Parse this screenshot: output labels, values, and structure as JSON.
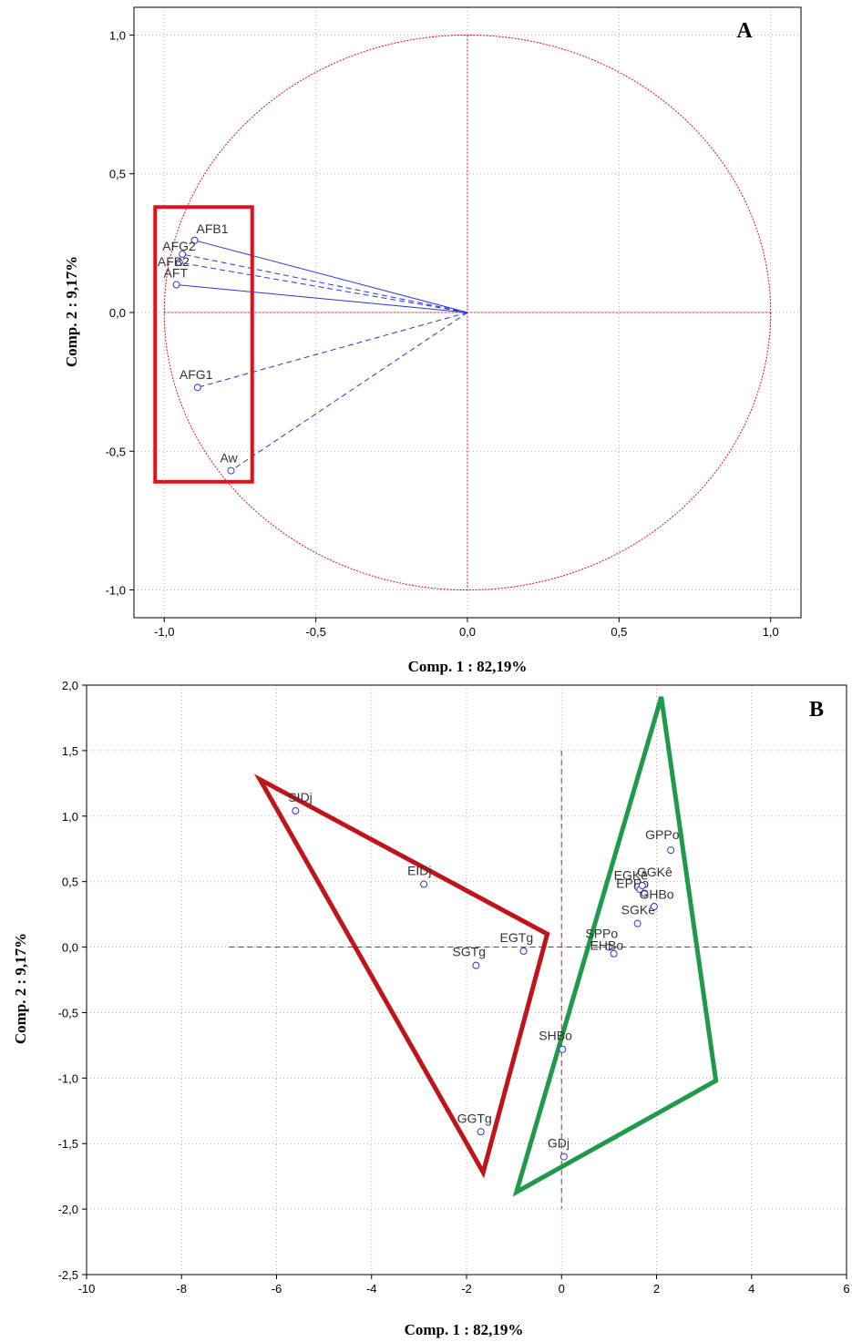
{
  "chart_data": [
    {
      "type": "scatter",
      "panel_label": "A",
      "xlabel": "Comp. 1  : 82,19%",
      "ylabel": "Comp. 2  :  9,17%",
      "xlim": [
        -1.1,
        1.1
      ],
      "ylim": [
        -1.1,
        1.1
      ],
      "xticks": [
        "-1,0",
        "-0,5",
        "0,0",
        "0,5",
        "1,0"
      ],
      "yticks": [
        "1,0",
        "0,5",
        "0,0",
        "-0,5",
        "-1,0"
      ],
      "grid": true,
      "correlation_circle": true,
      "points": [
        {
          "name": "AFB1",
          "x": -0.9,
          "y": 0.26,
          "line": "solid"
        },
        {
          "name": "AFG2",
          "x": -0.94,
          "y": 0.21,
          "line": "dashed"
        },
        {
          "name": "AFB2",
          "x": -0.95,
          "y": 0.18,
          "line": "dashed"
        },
        {
          "name": "AFT",
          "x": -0.96,
          "y": 0.1,
          "line": "solid"
        },
        {
          "name": "AFG1",
          "x": -0.89,
          "y": -0.27,
          "line": "dashed"
        },
        {
          "name": "Aw",
          "x": -0.78,
          "y": -0.57,
          "line": "dashed"
        }
      ],
      "highlight_box": {
        "x": [
          -1.03,
          -0.71
        ],
        "y": [
          -0.61,
          0.38
        ]
      },
      "colors": {
        "vectors": "#2a35d9",
        "circle": "#e0101a",
        "box": "#e0101a"
      }
    },
    {
      "type": "scatter",
      "panel_label": "B",
      "xlabel": "Comp. 1 : 82,19%",
      "ylabel": "Comp. 2 :  9,17%",
      "xlim": [
        -10,
        6
      ],
      "ylim": [
        -2.5,
        2.0
      ],
      "xticks": [
        "-10",
        "-8",
        "-6",
        "-4",
        "-2",
        "0",
        "2",
        "4",
        "6"
      ],
      "yticks": [
        "2,0",
        "1,5",
        "1,0",
        "0,5",
        "0,0",
        "-0,5",
        "-1,0",
        "-1,5",
        "-2,0",
        "-2,5"
      ],
      "grid": true,
      "points": [
        {
          "name": "SIDj",
          "x": -5.6,
          "y": 1.04
        },
        {
          "name": "EIDj",
          "x": -2.9,
          "y": 0.48
        },
        {
          "name": "SGTg",
          "x": -1.8,
          "y": -0.14
        },
        {
          "name": "EGTg",
          "x": -0.8,
          "y": -0.03
        },
        {
          "name": "GGTg",
          "x": -1.7,
          "y": -1.41
        },
        {
          "name": "GDj",
          "x": 0.05,
          "y": -1.6
        },
        {
          "name": "SHBo",
          "x": 0.02,
          "y": -0.78
        },
        {
          "name": "SPPo",
          "x": 1.0,
          "y": 0.0
        },
        {
          "name": "EHBo",
          "x": 1.1,
          "y": -0.05
        },
        {
          "name": "SGKê",
          "x": 1.6,
          "y": 0.18
        },
        {
          "name": "EGKê",
          "x": 1.6,
          "y": 0.46
        },
        {
          "name": "EPPo",
          "x": 1.65,
          "y": 0.44
        },
        {
          "name": "GGKê",
          "x": 1.7,
          "y": 0.47
        },
        {
          "name": "GHBo",
          "x": 1.75,
          "y": 0.41
        },
        {
          "name": "GPPo",
          "x": 2.3,
          "y": 0.74
        },
        {
          "name": "",
          "x": 1.95,
          "y": 0.31
        }
      ],
      "groups": [
        {
          "color": "#c0141a",
          "vertices": [
            [
              -6.35,
              1.28
            ],
            [
              -0.3,
              0.1
            ],
            [
              -1.65,
              -1.72
            ]
          ]
        },
        {
          "color": "#1e9a4a",
          "vertices": [
            [
              2.1,
              1.91
            ],
            [
              3.25,
              -1.02
            ],
            [
              -0.95,
              -1.87
            ]
          ]
        }
      ],
      "colors": {
        "points": "#2a35d9",
        "reference": "#a03030"
      }
    }
  ]
}
